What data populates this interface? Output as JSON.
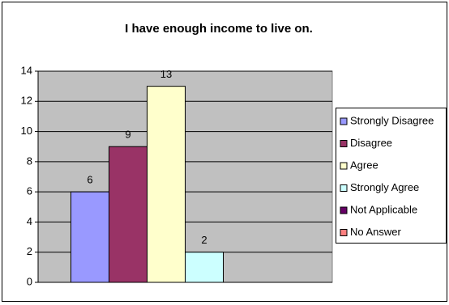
{
  "chart_data": {
    "type": "bar",
    "title": "I have enough income to live on.",
    "series": [
      {
        "name": "Strongly Disagree",
        "color": "#9999FF",
        "values": [
          6
        ]
      },
      {
        "name": "Disagree",
        "color": "#993366",
        "values": [
          9
        ]
      },
      {
        "name": "Agree",
        "color": "#FFFFCC",
        "values": [
          13
        ]
      },
      {
        "name": "Strongly Agree",
        "color": "#CCFFFF",
        "values": [
          2
        ]
      },
      {
        "name": "Not Applicable",
        "color": "#660066",
        "values": [
          0
        ]
      },
      {
        "name": "No Answer",
        "color": "#FF8080",
        "values": [
          0
        ]
      }
    ],
    "ylim": [
      0,
      14
    ],
    "yticks": [
      0,
      2,
      4,
      6,
      8,
      10,
      12,
      14
    ],
    "grid": true,
    "legend": "right"
  }
}
